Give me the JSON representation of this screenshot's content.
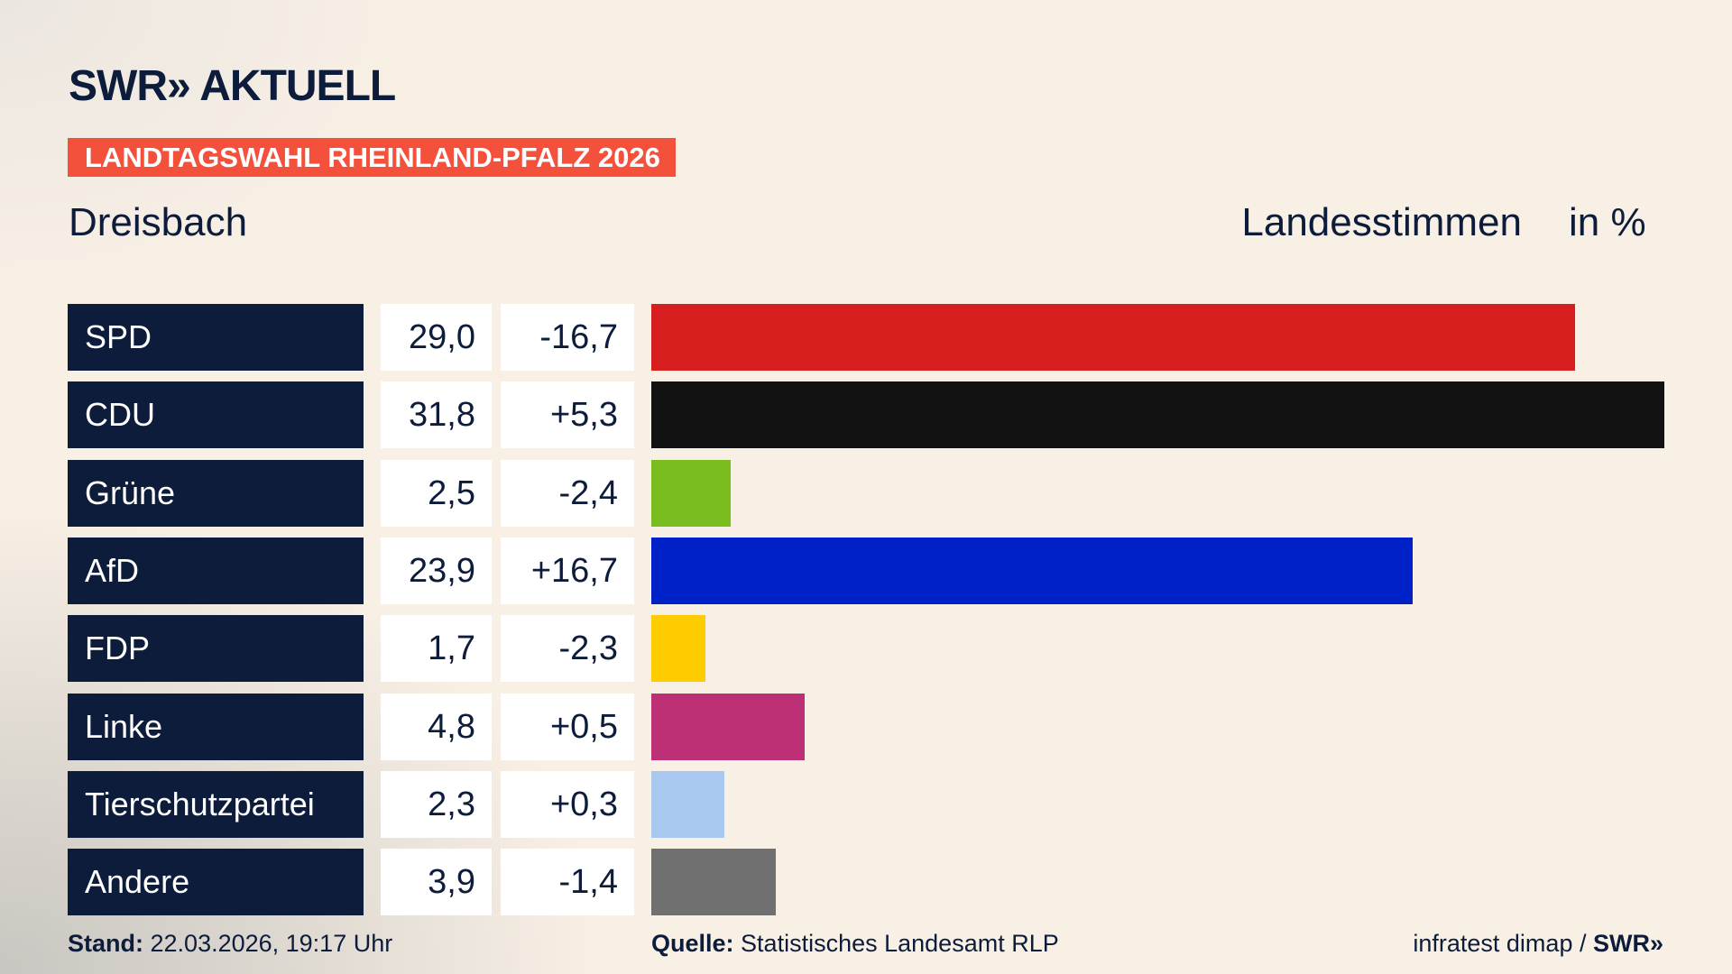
{
  "header": {
    "logo": "SWR» AKTUELL",
    "banner": "LANDTAGSWAHL RHEINLAND-PFALZ 2026",
    "region": "Dreisbach",
    "measure": "Landesstimmen",
    "unit": "in %"
  },
  "chart_data": {
    "type": "bar",
    "orientation": "horizontal",
    "categories": [
      "SPD",
      "CDU",
      "Grüne",
      "AfD",
      "FDP",
      "Linke",
      "Tierschutzpartei",
      "Andere"
    ],
    "values": [
      29.0,
      31.8,
      2.5,
      23.9,
      1.7,
      4.8,
      2.3,
      3.9
    ],
    "value_labels": [
      "29,0",
      "31,8",
      "2,5",
      "23,9",
      "1,7",
      "4,8",
      "2,3",
      "3,9"
    ],
    "diff_labels": [
      "-16,7",
      "+5,3",
      "-2,4",
      "+16,7",
      "-2,3",
      "+0,5",
      "+0,3",
      "-1,4"
    ],
    "colors": [
      "#d71f20",
      "#121212",
      "#79bd1f",
      "#0020c8",
      "#ffcc00",
      "#be3075",
      "#a9c8f0",
      "#707070"
    ],
    "xlim": [
      0,
      31.8
    ]
  },
  "footer": {
    "stand_label": "Stand:",
    "stand_value": "22.03.2026, 19:17 Uhr",
    "source_label": "Quelle:",
    "source_value": "Statistisches Landesamt RLP",
    "credit": "infratest dimap /",
    "credit_logo": "SWR»"
  }
}
